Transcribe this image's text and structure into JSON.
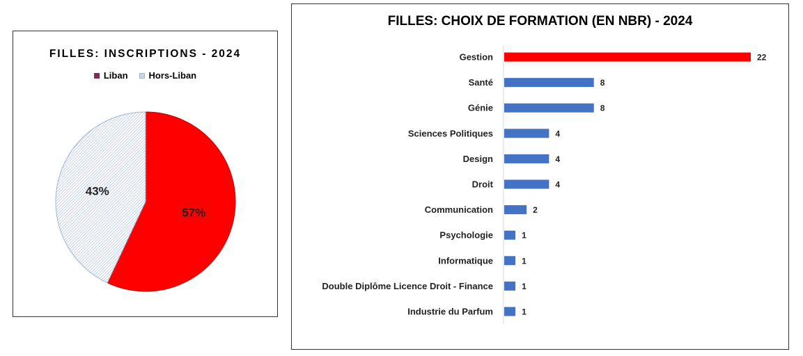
{
  "pie_panel": {
    "title": "FILLES: INSCRIPTIONS - 2024",
    "legend": [
      {
        "label": "Liban",
        "swatch_color": "#7b2c54",
        "pattern": "solid"
      },
      {
        "label": "Hors-Liban",
        "swatch_color": "#b9c7e6",
        "pattern": "hatch"
      }
    ]
  },
  "bar_panel": {
    "title": "FILLES: CHOIX DE FORMATION (EN NBR) - 2024"
  },
  "chart_data": [
    {
      "type": "pie",
      "title": "FILLES: INSCRIPTIONS - 2024",
      "slices": [
        {
          "name": "Liban",
          "value": 57,
          "label": "57%",
          "color": "#ff0000"
        },
        {
          "name": "Hors-Liban",
          "value": 43,
          "label": "43%",
          "color": "#9fb2d9",
          "pattern": "hatch"
        }
      ],
      "legend_position": "top"
    },
    {
      "type": "bar",
      "orientation": "horizontal",
      "title": "FILLES: CHOIX DE FORMATION (EN NBR) - 2024",
      "categories": [
        "Gestion",
        "Santé",
        "Génie",
        "Sciences Politiques",
        "Design",
        "Droit",
        "Communication",
        "Psychologie",
        "Informatique",
        "Double Diplôme Licence Droit - Finance",
        "Industrie du Parfum"
      ],
      "values": [
        22,
        8,
        8,
        4,
        4,
        4,
        2,
        1,
        1,
        1,
        1
      ],
      "colors": [
        "#ff0000",
        "#4472c4",
        "#4472c4",
        "#4472c4",
        "#4472c4",
        "#4472c4",
        "#4472c4",
        "#4472c4",
        "#4472c4",
        "#4472c4",
        "#4472c4"
      ],
      "xlim": [
        0,
        22
      ],
      "grid": false,
      "data_labels": true
    }
  ]
}
